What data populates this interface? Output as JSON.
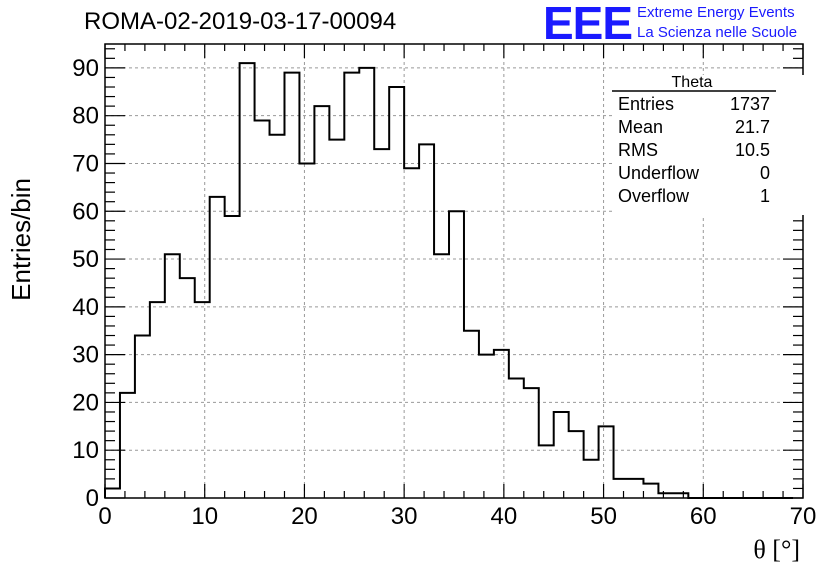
{
  "header": {
    "run_title": "ROMA-02-2019-03-17-00094",
    "logo_text": "EEE",
    "logo_line1": "Extreme Energy Events",
    "logo_line2": "La Scienza nelle Scuole"
  },
  "stats_box": {
    "title": "Theta",
    "rows": [
      {
        "label": "Entries",
        "value": "1737"
      },
      {
        "label": "Mean",
        "value": "21.7"
      },
      {
        "label": "RMS",
        "value": "10.5"
      },
      {
        "label": "Underflow",
        "value": "0"
      },
      {
        "label": "Overflow",
        "value": "1"
      }
    ]
  },
  "chart_data": {
    "type": "bar",
    "histogram": true,
    "bin_edges_start": 0,
    "bin_width": 1.5,
    "values": [
      2,
      22,
      34,
      41,
      51,
      46,
      41,
      63,
      59,
      91,
      79,
      76,
      89,
      70,
      82,
      75,
      89,
      90,
      73,
      86,
      69,
      74,
      51,
      60,
      35,
      30,
      31,
      25,
      23,
      11,
      18,
      14,
      8,
      15,
      4,
      4,
      3,
      1,
      1,
      0,
      0,
      0,
      0,
      0,
      0,
      0
    ],
    "xlabel": "θ [°]",
    "ylabel": "Entries/bin",
    "xlim": [
      0,
      70
    ],
    "ylim": [
      0,
      95
    ],
    "xticks": [
      0,
      10,
      20,
      30,
      40,
      50,
      60,
      70
    ],
    "yticks": [
      0,
      10,
      20,
      30,
      40,
      50,
      60,
      70,
      80,
      90
    ],
    "grid": true,
    "legend": "top-right"
  }
}
